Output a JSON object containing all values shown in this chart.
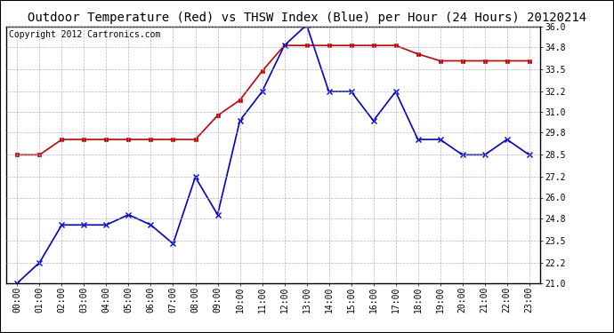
{
  "title": "Outdoor Temperature (Red) vs THSW Index (Blue) per Hour (24 Hours) 20120214",
  "copyright": "Copyright 2012 Cartronics.com",
  "x_labels": [
    "00:00",
    "01:00",
    "02:00",
    "03:00",
    "04:00",
    "05:00",
    "06:00",
    "07:00",
    "08:00",
    "09:00",
    "10:00",
    "11:00",
    "12:00",
    "13:00",
    "14:00",
    "15:00",
    "16:00",
    "17:00",
    "18:00",
    "19:00",
    "20:00",
    "21:00",
    "22:00",
    "23:00"
  ],
  "red_data": [
    28.5,
    28.5,
    29.4,
    29.4,
    29.4,
    29.4,
    29.4,
    29.4,
    29.4,
    30.8,
    31.7,
    33.4,
    34.9,
    34.9,
    34.9,
    34.9,
    34.9,
    34.9,
    34.4,
    34.0,
    34.0,
    34.0,
    34.0,
    34.0
  ],
  "blue_data": [
    21.0,
    22.2,
    24.4,
    24.4,
    24.4,
    25.0,
    24.4,
    23.3,
    27.2,
    25.0,
    30.5,
    32.2,
    34.9,
    36.1,
    32.2,
    32.2,
    30.5,
    32.2,
    29.4,
    29.4,
    28.5,
    28.5,
    29.4,
    28.5
  ],
  "ylim": [
    21.0,
    36.0
  ],
  "yticks": [
    21.0,
    22.2,
    23.5,
    24.8,
    26.0,
    27.2,
    28.5,
    29.8,
    31.0,
    32.2,
    33.5,
    34.8,
    36.0
  ],
  "red_color": "#cc0000",
  "blue_color": "#0000cc",
  "bg_color": "#ffffff",
  "grid_color": "#aaaacc",
  "title_fontsize": 10,
  "copyright_fontsize": 7,
  "tick_fontsize": 7
}
